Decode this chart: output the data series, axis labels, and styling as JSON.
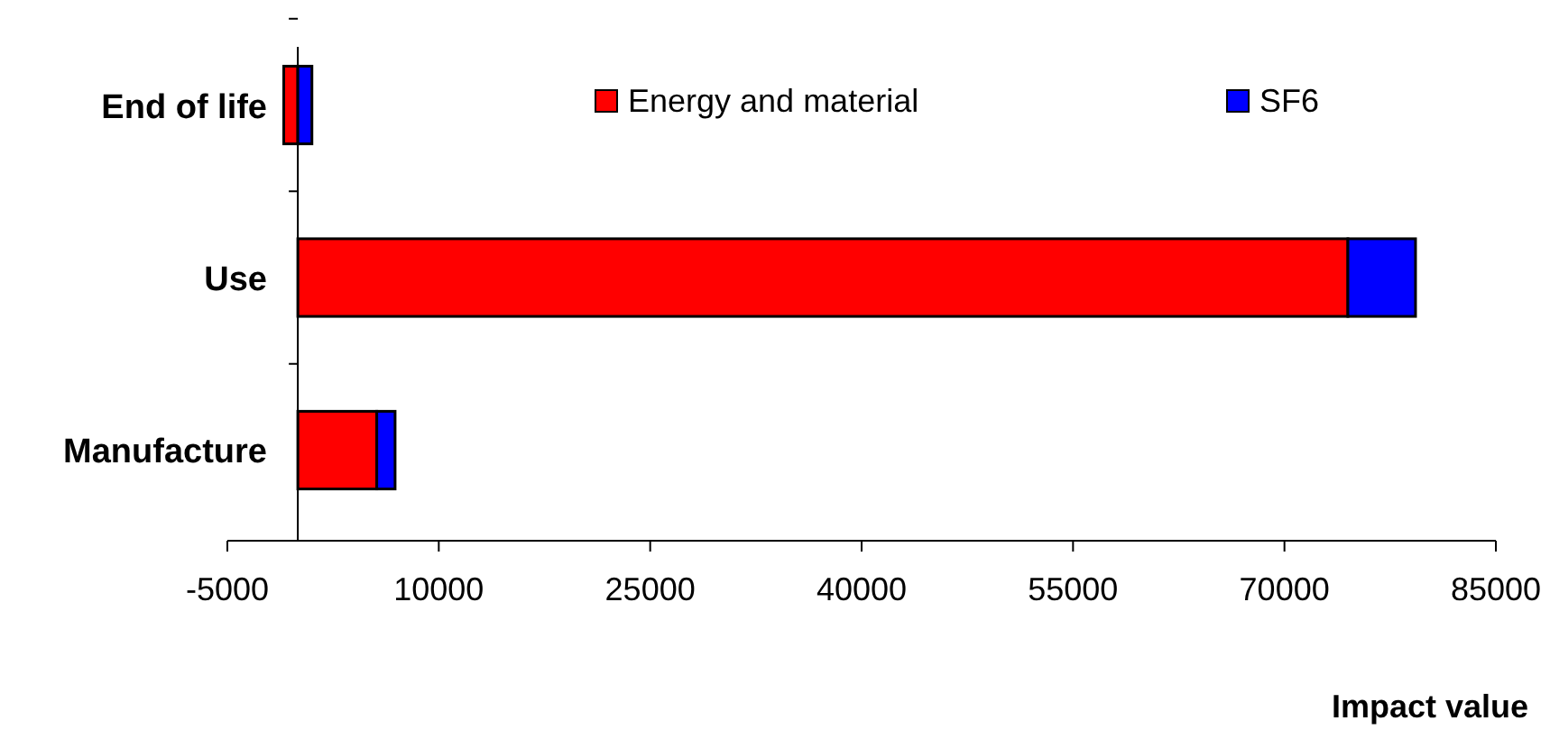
{
  "chart_data": {
    "type": "bar",
    "orientation": "horizontal",
    "stacked": true,
    "categories": [
      "End of life",
      "Use",
      "Manufacture"
    ],
    "xlabel": "Impact value",
    "xlim": [
      -5000,
      85000
    ],
    "xticks": [
      -5000,
      10000,
      25000,
      40000,
      55000,
      70000,
      85000
    ],
    "legend": "top",
    "grid": false,
    "series": [
      {
        "name": "Energy and material",
        "color": "#ff0000",
        "values": [
          -1000,
          74500,
          5600
        ]
      },
      {
        "name": "SF6",
        "color": "#0000ff",
        "values": [
          1000,
          4800,
          1300
        ]
      }
    ]
  }
}
